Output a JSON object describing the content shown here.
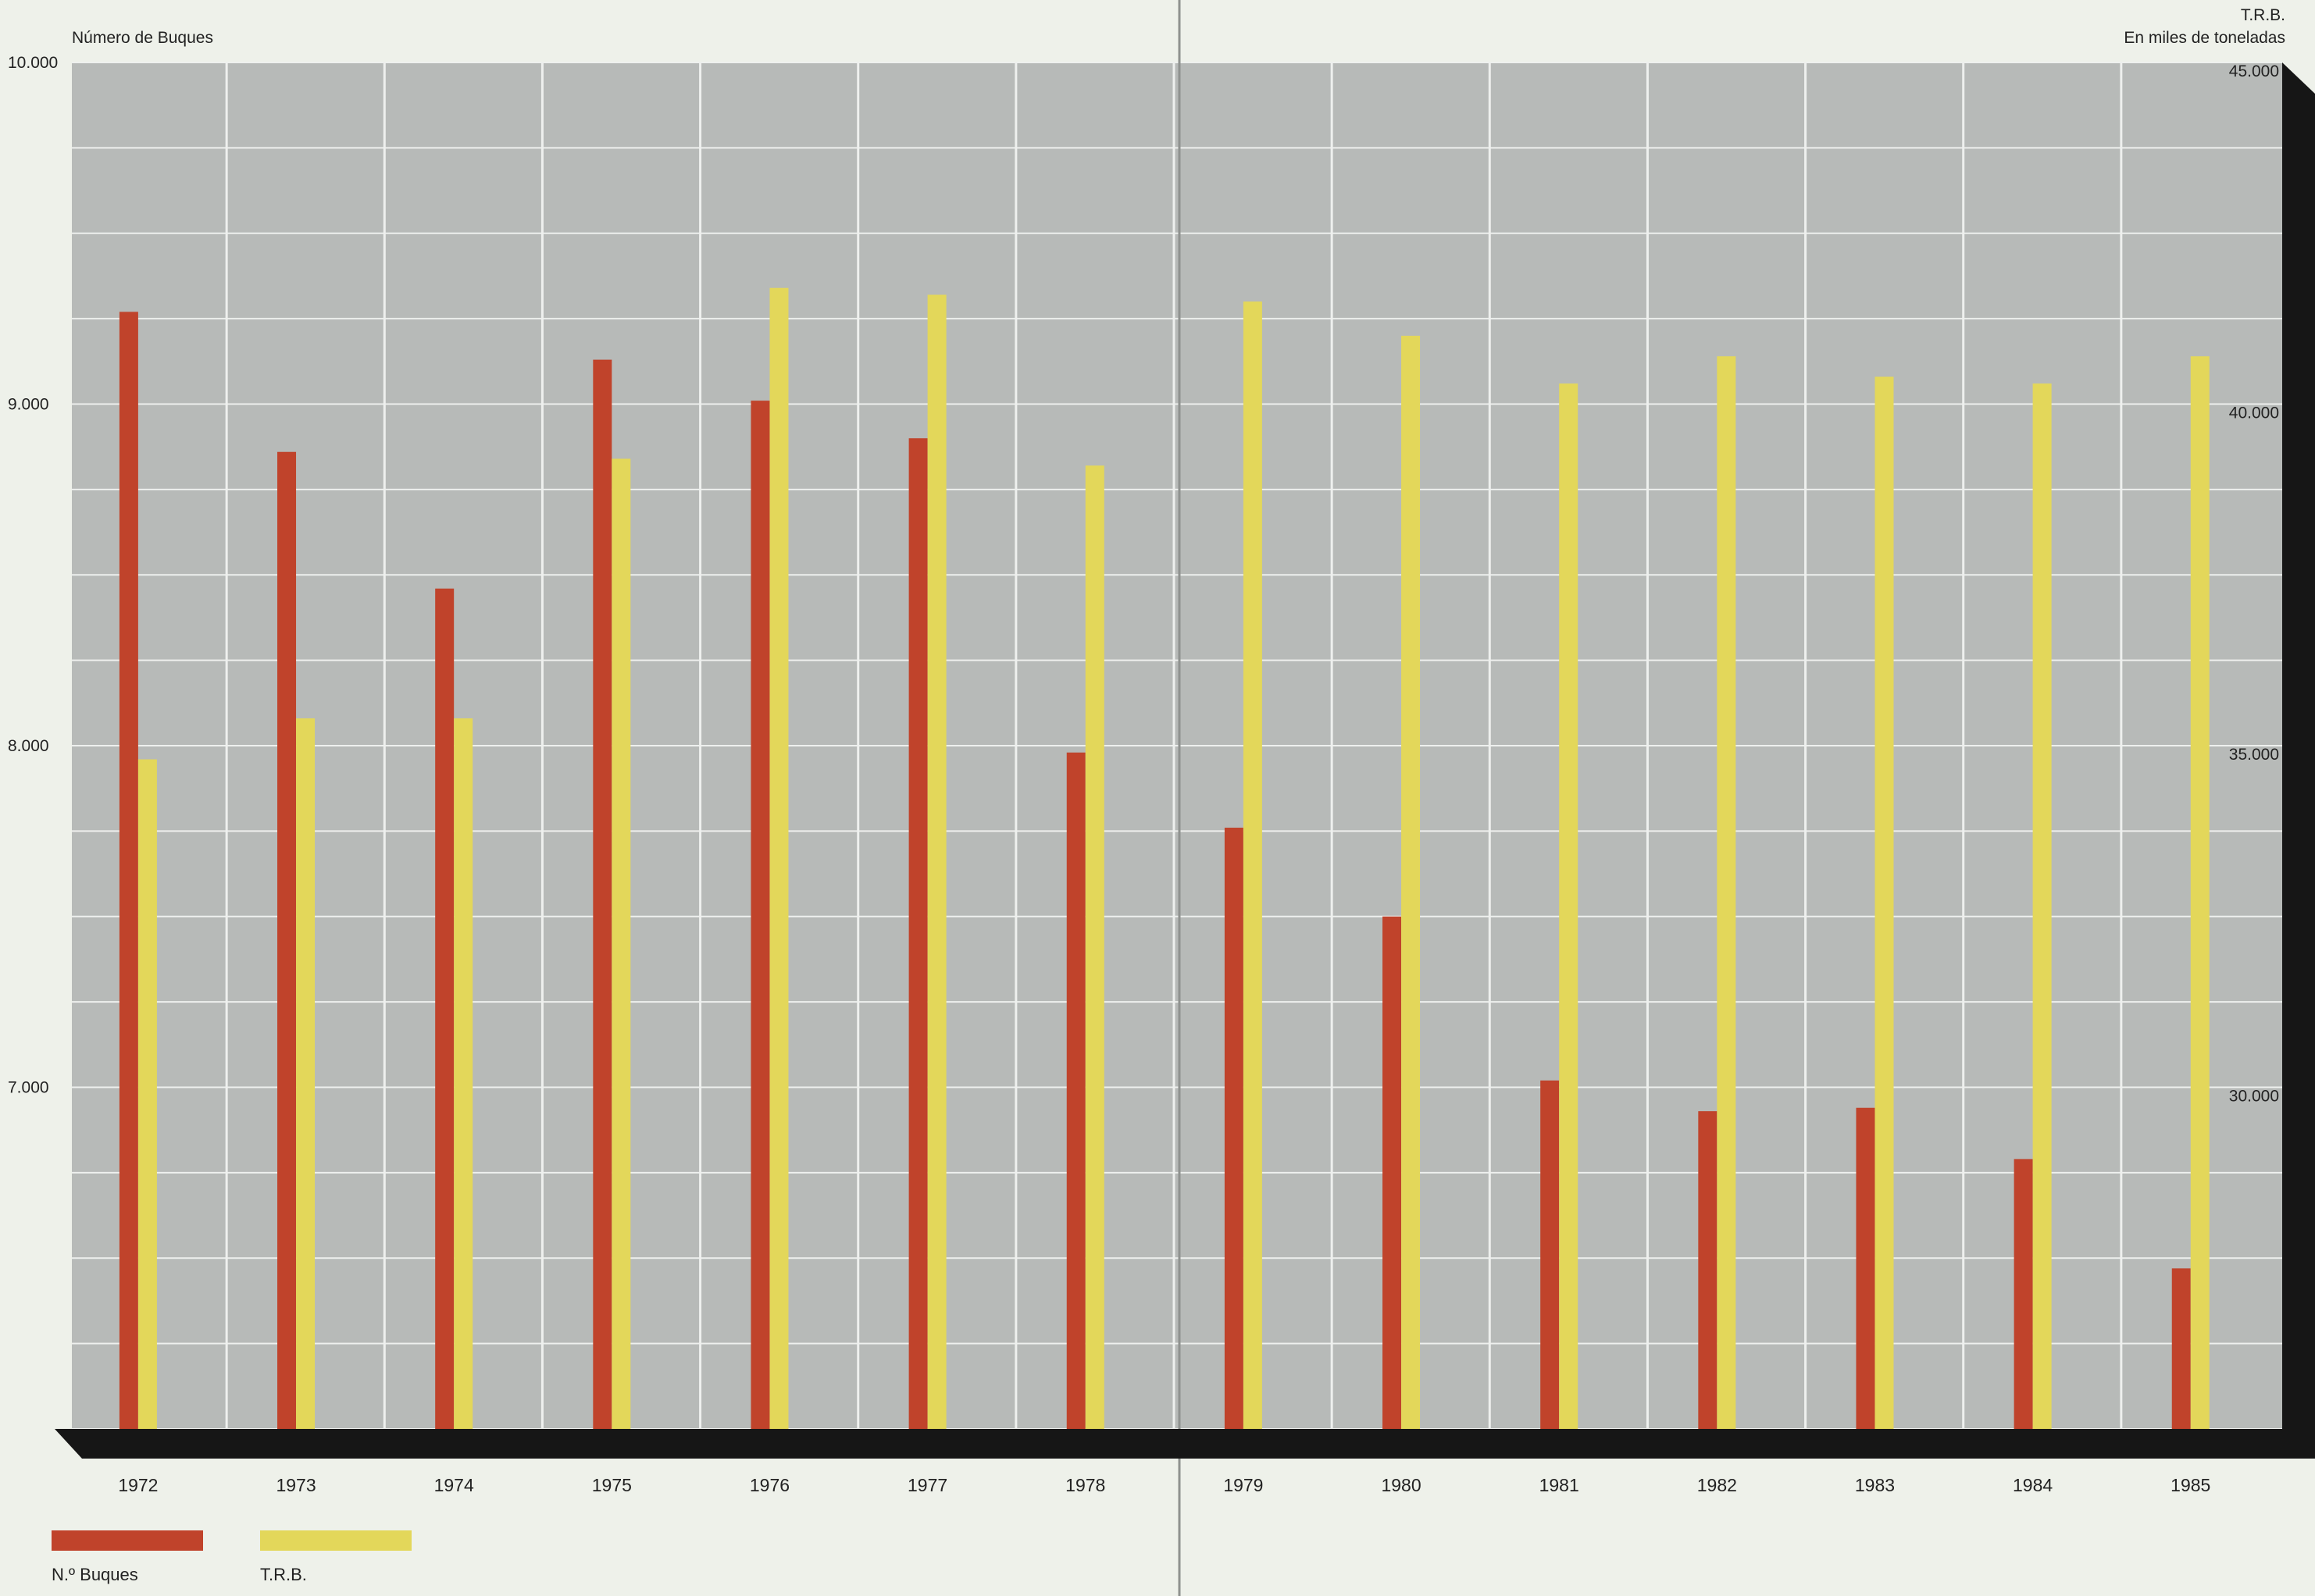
{
  "chart_data": {
    "type": "bar",
    "categories": [
      "1972",
      "1973",
      "1974",
      "1975",
      "1976",
      "1977",
      "1978",
      "1979",
      "1980",
      "1981",
      "1982",
      "1983",
      "1984",
      "1985"
    ],
    "series": [
      {
        "name": "N.º Buques",
        "axis": "left",
        "color": "#c0432b",
        "values": [
          9270,
          8860,
          8460,
          9130,
          9010,
          8900,
          7980,
          7760,
          7500,
          7020,
          6930,
          6940,
          6790,
          6470
        ]
      },
      {
        "name": "T.R.B.",
        "axis": "right",
        "color": "#e3d75a",
        "values": [
          34800,
          35400,
          35400,
          39200,
          41700,
          41600,
          39100,
          41500,
          41000,
          40300,
          40700,
          40400,
          40300,
          40700
        ]
      }
    ],
    "left_axis": {
      "title": "Número de Buques",
      "ylim": [
        6000,
        10000
      ],
      "ticks": [
        10000,
        9000,
        8000,
        7000
      ],
      "tick_labels": [
        "10.000",
        "9.000",
        "8.000",
        "7.000"
      ]
    },
    "right_axis": {
      "title_line1": "T.R.B.",
      "title_line2": "En miles de toneladas",
      "ylim": [
        25000,
        45000
      ],
      "ticks": [
        45000,
        40000,
        35000,
        30000
      ],
      "tick_labels": [
        "45.000",
        "40.000",
        "35.000",
        "30.000"
      ]
    },
    "grid": true,
    "legend_position": "bottom-left",
    "colors": {
      "plot_background": "#b7bab8",
      "gridline": "#eef0ee",
      "baseline": "#161616",
      "page": "#eef1ea"
    }
  }
}
